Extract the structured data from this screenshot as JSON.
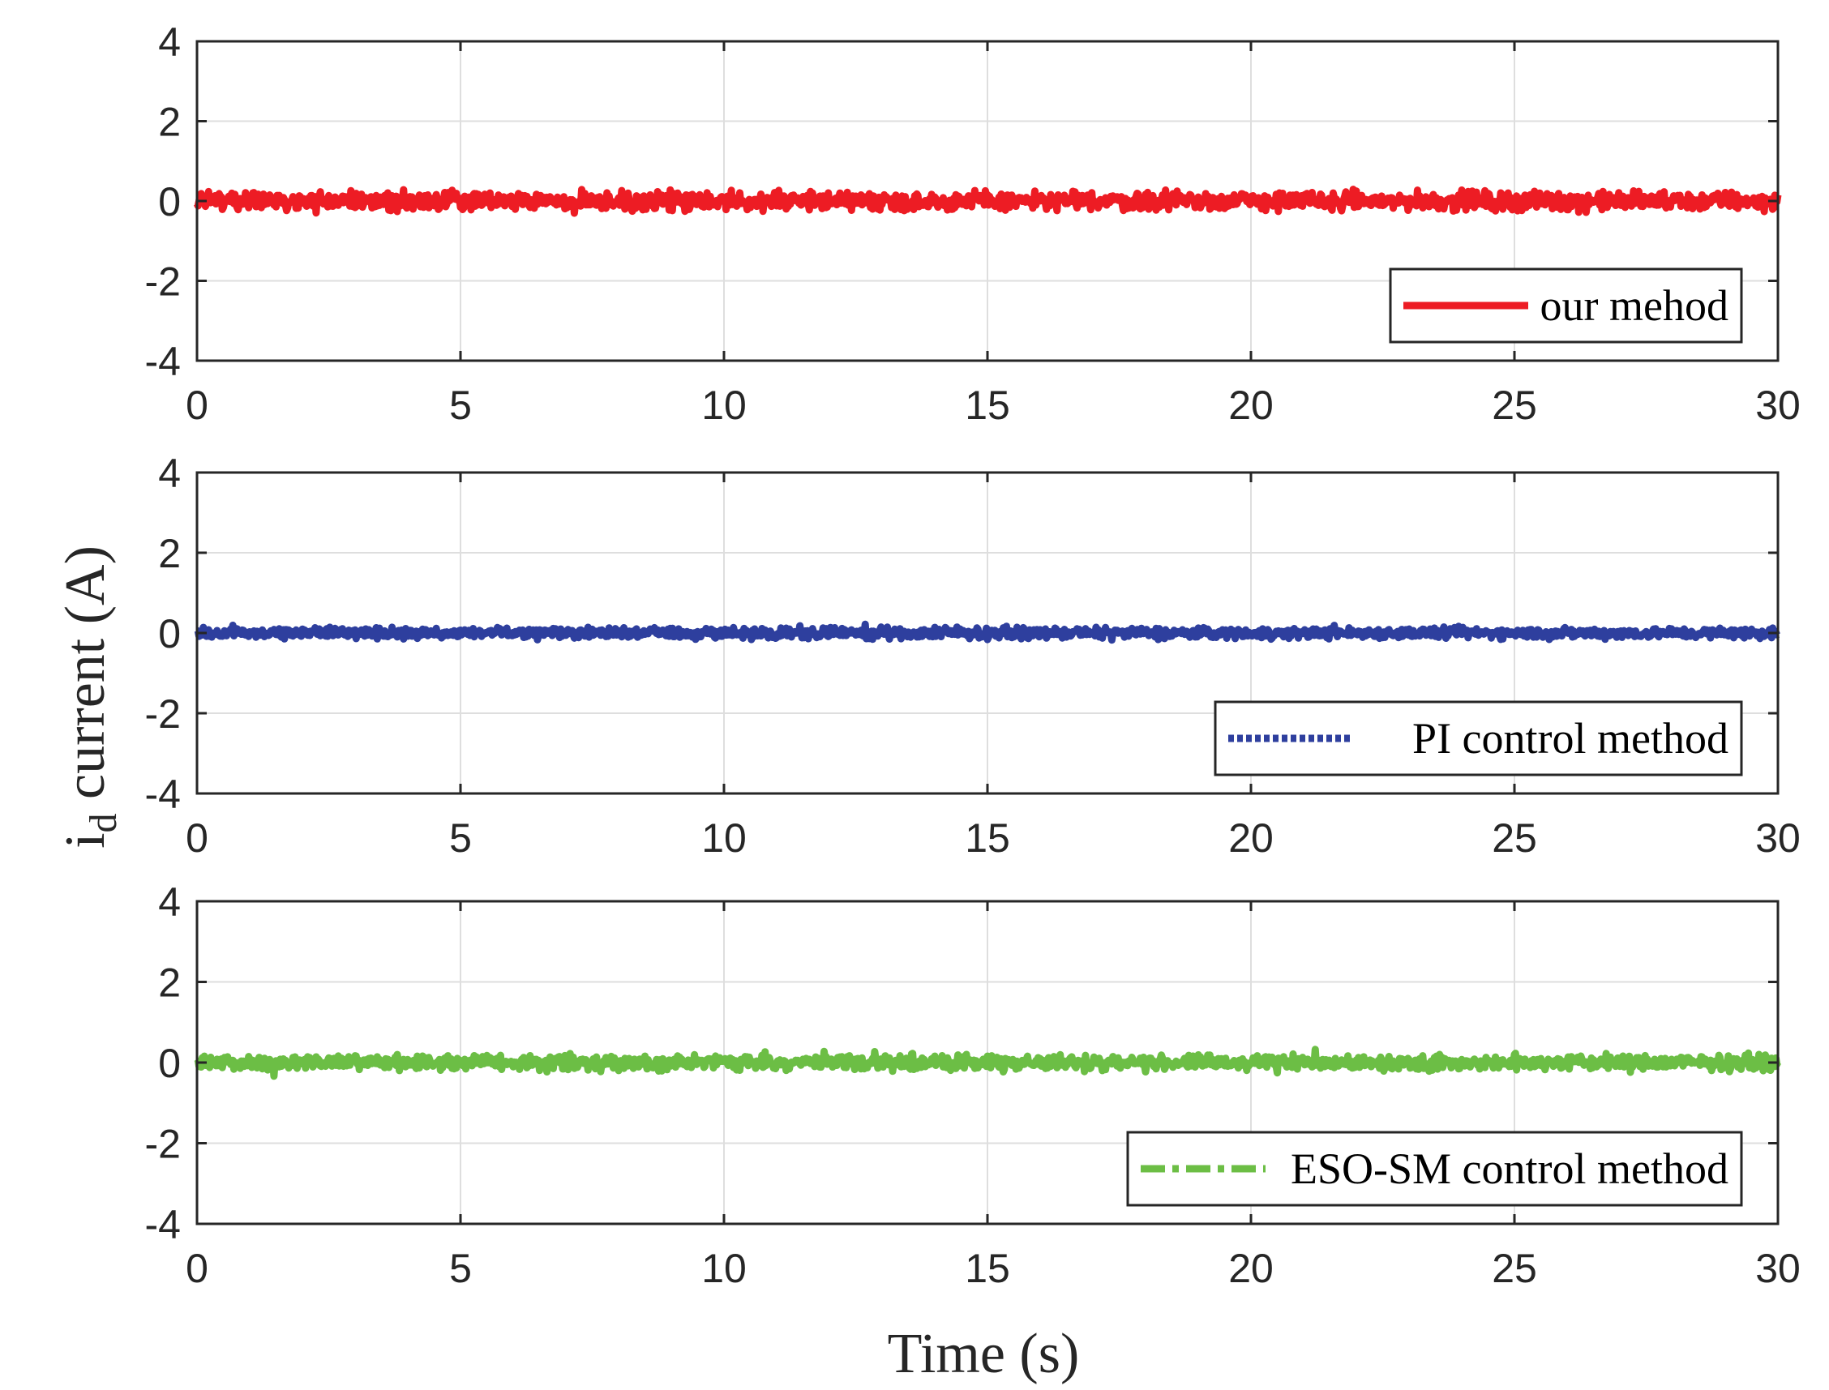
{
  "figure": {
    "ylabel_main": "i",
    "ylabel_sub": "d",
    "ylabel_rest": " current (A)",
    "xlabel": "Time (s)"
  },
  "chart_data": [
    {
      "type": "line",
      "xlim": [
        0,
        30
      ],
      "ylim": [
        -4,
        4
      ],
      "xticks": [
        0,
        5,
        10,
        15,
        20,
        25,
        30
      ],
      "yticks": [
        4,
        2,
        0,
        -2,
        -4
      ],
      "xtick_labels": [
        "0",
        "5",
        "10",
        "15",
        "20",
        "25",
        "30"
      ],
      "ytick_labels": [
        "4",
        "2",
        "0",
        "-2",
        "-4"
      ],
      "grid": true,
      "legend_position": "bottom-right",
      "series": [
        {
          "name": "our mehod",
          "color": "#ed1c24",
          "style": "solid",
          "mean": 0.0,
          "amplitude": 0.45,
          "x_range": [
            0,
            30
          ]
        }
      ]
    },
    {
      "type": "line",
      "xlim": [
        0,
        30
      ],
      "ylim": [
        -4,
        4
      ],
      "xticks": [
        0,
        5,
        10,
        15,
        20,
        25,
        30
      ],
      "yticks": [
        4,
        2,
        0,
        -2,
        -4
      ],
      "xtick_labels": [
        "0",
        "5",
        "10",
        "15",
        "20",
        "25",
        "30"
      ],
      "ytick_labels": [
        "4",
        "2",
        "0",
        "-2",
        "-4"
      ],
      "grid": true,
      "legend_position": "bottom-right",
      "series": [
        {
          "name": "PI control method",
          "color": "#2e3f9e",
          "style": "dotted",
          "mean": 0.0,
          "amplitude": 0.25,
          "x_range": [
            0,
            30
          ]
        }
      ]
    },
    {
      "type": "line",
      "xlim": [
        0,
        30
      ],
      "ylim": [
        -4,
        4
      ],
      "xticks": [
        0,
        5,
        10,
        15,
        20,
        25,
        30
      ],
      "yticks": [
        4,
        2,
        0,
        -2,
        -4
      ],
      "xtick_labels": [
        "0",
        "5",
        "10",
        "15",
        "20",
        "25",
        "30"
      ],
      "ytick_labels": [
        "4",
        "2",
        "0",
        "-2",
        "-4"
      ],
      "grid": true,
      "legend_position": "bottom-right",
      "series": [
        {
          "name": "ESO-SM control method",
          "color": "#6cbe45",
          "style": "dashed",
          "mean": 0.0,
          "amplitude": 0.35,
          "x_range": [
            0,
            30
          ]
        }
      ]
    }
  ]
}
